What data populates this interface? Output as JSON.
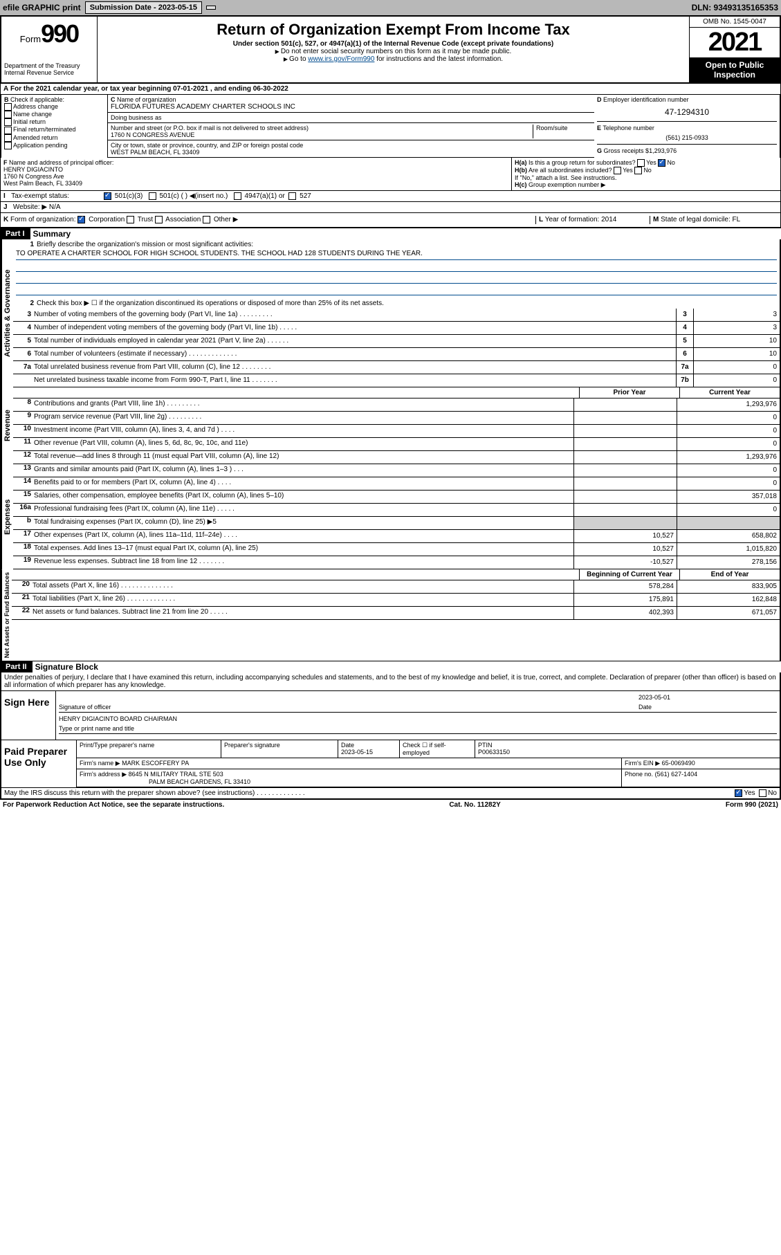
{
  "topbar": {
    "efile": "efile GRAPHIC print",
    "subdate_label": "Submission Date - 2023-05-15",
    "dln": "DLN: 93493135165353"
  },
  "header": {
    "form_label": "Form",
    "form_num": "990",
    "title": "Return of Organization Exempt From Income Tax",
    "sub": "Under section 501(c), 527, or 4947(a)(1) of the Internal Revenue Code (except private foundations)",
    "note1": "Do not enter social security numbers on this form as it may be made public.",
    "note2": "Go to ",
    "link": "www.irs.gov/Form990",
    "note3": " for instructions and the latest information.",
    "dept": "Department of the Treasury\nInternal Revenue Service",
    "omb": "OMB No. 1545-0047",
    "year": "2021",
    "inspect": "Open to Public Inspection"
  },
  "row_a": "For the 2021 calendar year, or tax year beginning 07-01-2021   , and ending 06-30-2022",
  "B": {
    "label": "Check if applicable:",
    "items": [
      "Address change",
      "Name change",
      "Initial return",
      "Final return/terminated",
      "Amended return",
      "Application pending"
    ]
  },
  "C": {
    "name_label": "Name of organization",
    "name": "FLORIDA FUTURES ACADEMY CHARTER SCHOOLS INC",
    "dba": "Doing business as",
    "street_label": "Number and street (or P.O. box if mail is not delivered to street address)",
    "room": "Room/suite",
    "street": "1760 N CONGRESS AVENUE",
    "city_label": "City or town, state or province, country, and ZIP or foreign postal code",
    "city": "WEST PALM BEACH, FL  33409"
  },
  "D": {
    "label": "Employer identification number",
    "ein": "47-1294310"
  },
  "E": {
    "label": "Telephone number",
    "phone": "(561) 215-0933"
  },
  "G": {
    "label": "Gross receipts $",
    "val": "1,293,976"
  },
  "F": {
    "label": "Name and address of principal officer:",
    "name": "HENRY DIGIACINTO",
    "addr1": "1760 N Congress Ave",
    "addr2": "West Palm Beach, FL  33409"
  },
  "H": {
    "a": "Is this a group return for subordinates?",
    "b": "Are all subordinates included?",
    "b2": "If \"No,\" attach a list. See instructions.",
    "c": "Group exemption number ▶",
    "yes": "Yes",
    "no": "No"
  },
  "I": {
    "label": "Tax-exempt status:",
    "o1": "501(c)(3)",
    "o2": "501(c) (  ) ◀(insert no.)",
    "o3": "4947(a)(1) or",
    "o4": "527"
  },
  "J": {
    "label": "Website: ▶",
    "val": "N/A"
  },
  "K": {
    "label": "Form of organization:",
    "o1": "Corporation",
    "o2": "Trust",
    "o3": "Association",
    "o4": "Other ▶"
  },
  "L": {
    "label": "Year of formation:",
    "val": "2014"
  },
  "M": {
    "label": "State of legal domicile:",
    "val": "FL"
  },
  "part1": {
    "hdr": "Part I",
    "title": "Summary",
    "vtabs": [
      "Activities & Governance",
      "Revenue",
      "Expenses",
      "Net Assets or Fund Balances"
    ],
    "l1": "Briefly describe the organization's mission or most significant activities:",
    "mission": "TO OPERATE A CHARTER SCHOOL FOR HIGH SCHOOL STUDENTS. THE SCHOOL HAD 128 STUDENTS DURING THE YEAR.",
    "l2": "Check this box ▶ ☐  if the organization discontinued its operations or disposed of more than 25% of its net assets.",
    "lines_a": [
      {
        "n": "3",
        "t": "Number of voting members of the governing body (Part VI, line 1a)  .   .   .   .   .   .   .   .   .",
        "b": "3",
        "v": "3"
      },
      {
        "n": "4",
        "t": "Number of independent voting members of the governing body (Part VI, line 1b)   .   .   .   .   .",
        "b": "4",
        "v": "3"
      },
      {
        "n": "5",
        "t": "Total number of individuals employed in calendar year 2021 (Part V, line 2a)   .   .   .   .   .   .",
        "b": "5",
        "v": "10"
      },
      {
        "n": "6",
        "t": "Total number of volunteers (estimate if necessary)   .   .   .   .   .   .   .   .   .   .   .   .   .",
        "b": "6",
        "v": "10"
      },
      {
        "n": "7a",
        "t": "Total unrelated business revenue from Part VIII, column (C), line 12   .   .   .   .   .   .   .   .",
        "b": "7a",
        "v": "0"
      },
      {
        "n": "",
        "t": "Net unrelated business taxable income from Form 990-T, Part I, line 11   .   .   .   .   .   .   .",
        "b": "7b",
        "v": "0"
      }
    ],
    "col_hdr": {
      "prior": "Prior Year",
      "current": "Current Year",
      "boy": "Beginning of Current Year",
      "eoy": "End of Year"
    },
    "rev": [
      {
        "n": "8",
        "t": "Contributions and grants (Part VIII, line 1h)   .   .   .   .   .   .   .   .   .",
        "p": "",
        "c": "1,293,976"
      },
      {
        "n": "9",
        "t": "Program service revenue (Part VIII, line 2g)   .   .   .   .   .   .   .   .   .",
        "p": "",
        "c": "0"
      },
      {
        "n": "10",
        "t": "Investment income (Part VIII, column (A), lines 3, 4, and 7d )   .   .   .   .",
        "p": "",
        "c": "0"
      },
      {
        "n": "11",
        "t": "Other revenue (Part VIII, column (A), lines 5, 6d, 8c, 9c, 10c, and 11e)",
        "p": "",
        "c": "0"
      },
      {
        "n": "12",
        "t": "Total revenue—add lines 8 through 11 (must equal Part VIII, column (A), line 12)",
        "p": "",
        "c": "1,293,976"
      }
    ],
    "exp": [
      {
        "n": "13",
        "t": "Grants and similar amounts paid (Part IX, column (A), lines 1–3 )   .   .   .",
        "p": "",
        "c": "0"
      },
      {
        "n": "14",
        "t": "Benefits paid to or for members (Part IX, column (A), line 4)   .   .   .   .",
        "p": "",
        "c": "0"
      },
      {
        "n": "15",
        "t": "Salaries, other compensation, employee benefits (Part IX, column (A), lines 5–10)",
        "p": "",
        "c": "357,018"
      },
      {
        "n": "16a",
        "t": "Professional fundraising fees (Part IX, column (A), line 11e)   .   .   .   .   .",
        "p": "",
        "c": "0"
      },
      {
        "n": "b",
        "t": "Total fundraising expenses (Part IX, column (D), line 25) ▶5",
        "shade": true
      },
      {
        "n": "17",
        "t": "Other expenses (Part IX, column (A), lines 11a–11d, 11f–24e)   .   .   .   .",
        "p": "10,527",
        "c": "658,802"
      },
      {
        "n": "18",
        "t": "Total expenses. Add lines 13–17 (must equal Part IX, column (A), line 25)",
        "p": "10,527",
        "c": "1,015,820"
      },
      {
        "n": "19",
        "t": "Revenue less expenses. Subtract line 18 from line 12   .   .   .   .   .   .   .",
        "p": "-10,527",
        "c": "278,156"
      }
    ],
    "net": [
      {
        "n": "20",
        "t": "Total assets (Part X, line 16)   .   .   .   .   .   .   .   .   .   .   .   .   .   .",
        "p": "578,284",
        "c": "833,905"
      },
      {
        "n": "21",
        "t": "Total liabilities (Part X, line 26)   .   .   .   .   .   .   .   .   .   .   .   .   .",
        "p": "175,891",
        "c": "162,848"
      },
      {
        "n": "22",
        "t": "Net assets or fund balances. Subtract line 21 from line 20   .   .   .   .   .",
        "p": "402,393",
        "c": "671,057"
      }
    ]
  },
  "part2": {
    "hdr": "Part II",
    "title": "Signature Block",
    "decl": "Under penalties of perjury, I declare that I have examined this return, including accompanying schedules and statements, and to the best of my knowledge and belief, it is true, correct, and complete. Declaration of preparer (other than officer) is based on all information of which preparer has any knowledge.",
    "sign_here": "Sign Here",
    "sig_officer": "Signature of officer",
    "date_label": "Date",
    "date": "2023-05-01",
    "officer": "HENRY DIGIACINTO  BOARD CHAIRMAN",
    "type_name": "Type or print name and title",
    "paid": "Paid Preparer Use Only",
    "pr_name_label": "Print/Type preparer's name",
    "pr_sig_label": "Preparer's signature",
    "pr_date_label": "Date",
    "pr_date": "2023-05-15",
    "pr_check": "Check ☐ if self-employed",
    "ptin_label": "PTIN",
    "ptin": "P00633150",
    "firm_name_label": "Firm's name   ▶",
    "firm_name": "MARK ESCOFFERY PA",
    "firm_ein_label": "Firm's EIN ▶",
    "firm_ein": "65-0069490",
    "firm_addr_label": "Firm's address ▶",
    "firm_addr1": "8645 N MILITARY TRAIL STE 503",
    "firm_addr2": "PALM BEACH GARDENS, FL  33410",
    "phone_label": "Phone no.",
    "phone": "(561) 627-1404",
    "discuss": "May the IRS discuss this return with the preparer shown above? (see instructions)   .   .   .   .   .   .   .   .   .   .   .   .   ."
  },
  "footer": {
    "left": "For Paperwork Reduction Act Notice, see the separate instructions.",
    "mid": "Cat. No. 11282Y",
    "right": "Form 990 (2021)"
  }
}
